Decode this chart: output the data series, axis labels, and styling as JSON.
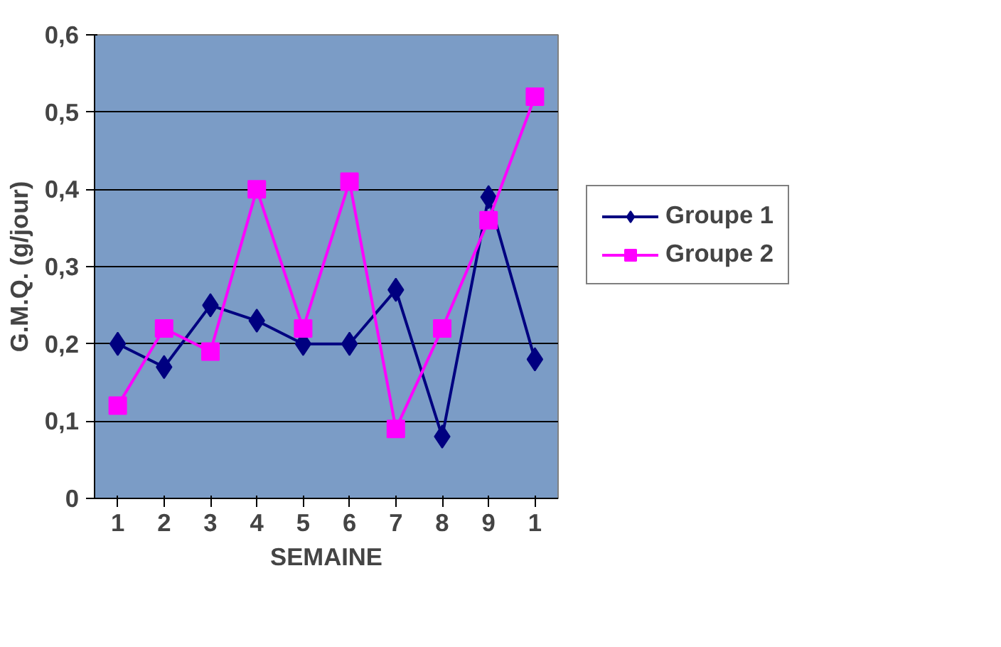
{
  "chart_data": {
    "type": "line",
    "xlabel": "SEMAINE",
    "ylabel": "G.M.Q. (g/jour)",
    "categories": [
      "1",
      "2",
      "3",
      "4",
      "5",
      "6",
      "7",
      "8",
      "9",
      "1"
    ],
    "series": [
      {
        "name": "Groupe 1",
        "color": "#000080",
        "marker": "diamond",
        "values": [
          0.2,
          0.17,
          0.25,
          0.23,
          0.2,
          0.2,
          0.27,
          0.08,
          0.39,
          0.18
        ]
      },
      {
        "name": "Groupe 2",
        "color": "#ff00ff",
        "marker": "square",
        "values": [
          0.12,
          0.22,
          0.19,
          0.4,
          0.22,
          0.41,
          0.09,
          0.22,
          0.36,
          0.52
        ]
      }
    ],
    "ylim": [
      0,
      0.6
    ],
    "yticks": [
      0,
      {
        "value": 0.1,
        "label": "0,1"
      },
      {
        "value": 0.2,
        "label": "0,2"
      },
      {
        "value": 0.3,
        "label": "0,3"
      },
      {
        "value": 0.4,
        "label": "0,4"
      },
      {
        "value": 0.5,
        "label": "0,5"
      },
      {
        "value": 0.6,
        "label": "0,6"
      }
    ],
    "grid": "y",
    "legend": "right",
    "line_style": "solid"
  }
}
